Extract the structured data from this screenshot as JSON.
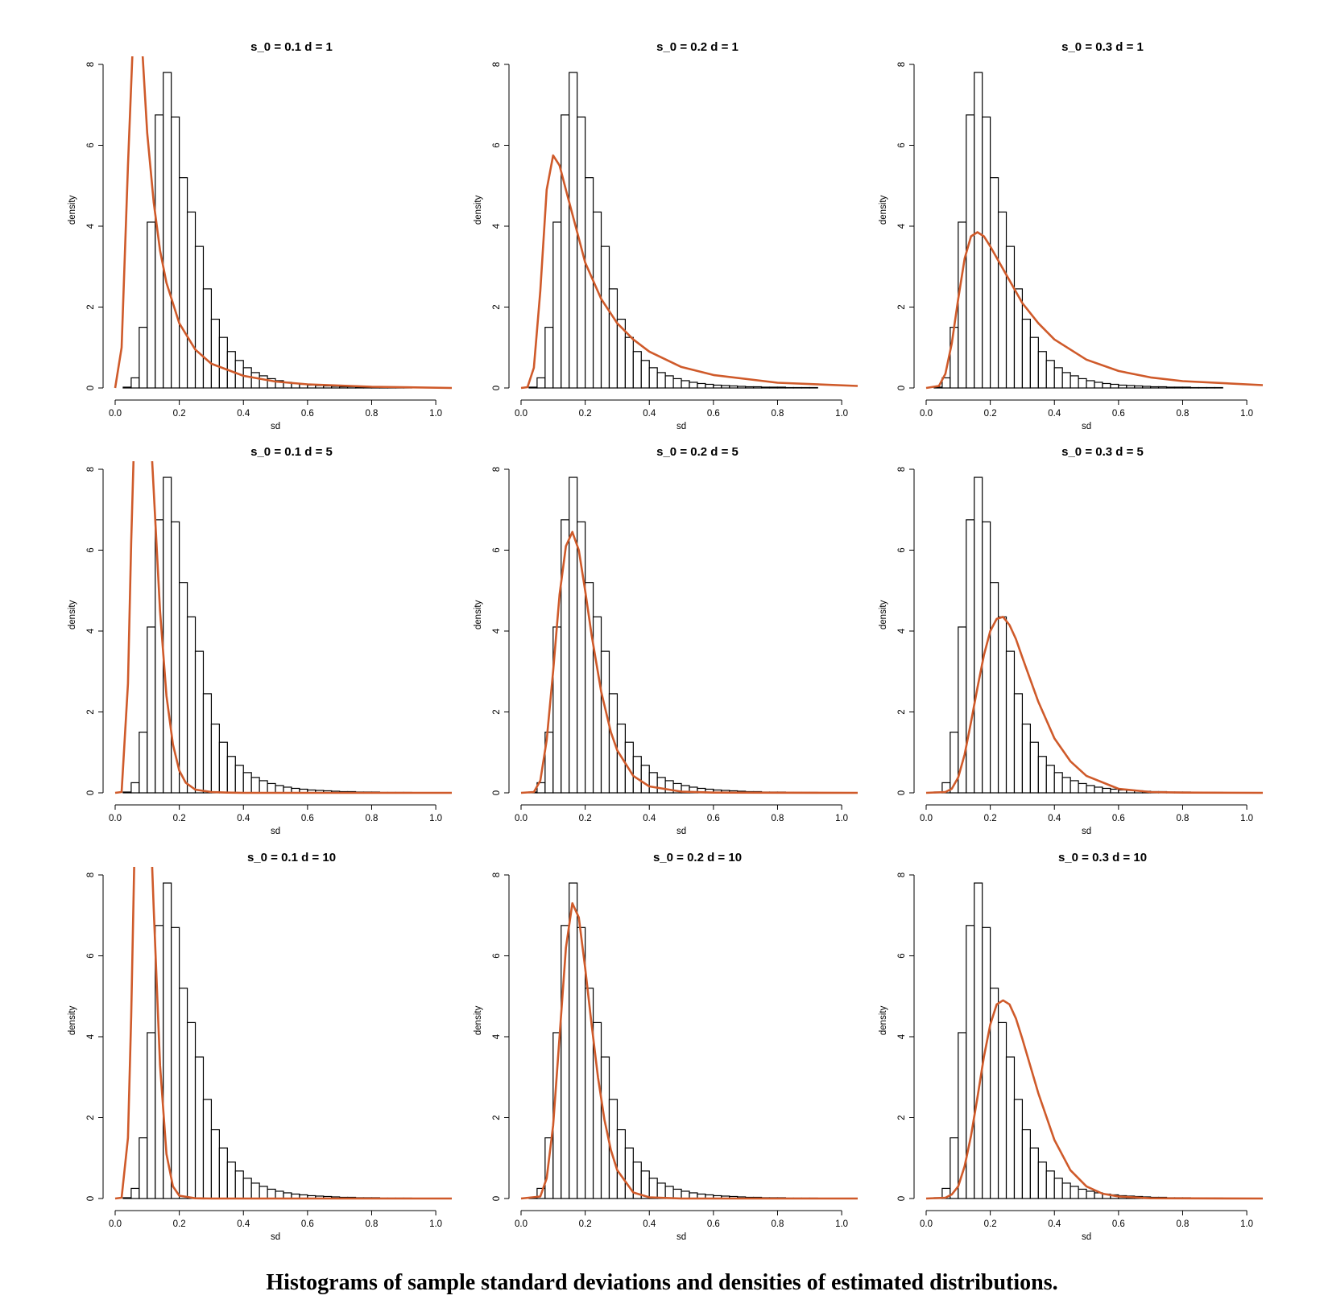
{
  "caption": "Histograms of sample standard deviations and densities of estimated distributions.",
  "colors": {
    "curve": "#cf5a2a",
    "bars": "#000000"
  },
  "chart_data": {
    "type": "bar",
    "layout": "3x3 grid of histograms with overlaid density curves",
    "xlabel": "sd",
    "ylabel": "density",
    "xlim": [
      0,
      1.05
    ],
    "ylim": [
      0,
      8
    ],
    "x_ticks": [
      0.0,
      0.2,
      0.4,
      0.6,
      0.8,
      1.0
    ],
    "x_tick_labels": [
      "0.0",
      "0.2",
      "0.4",
      "0.6",
      "0.8",
      "1.0"
    ],
    "y_ticks": [
      0,
      2,
      4,
      6,
      8
    ],
    "y_tick_labels": [
      "0",
      "2",
      "4",
      "6",
      "8"
    ],
    "histogram": {
      "bin_width": 0.025,
      "bin_starts": [
        0.0,
        0.025,
        0.05,
        0.075,
        0.1,
        0.125,
        0.15,
        0.175,
        0.2,
        0.225,
        0.25,
        0.275,
        0.3,
        0.325,
        0.35,
        0.375,
        0.4,
        0.425,
        0.45,
        0.475,
        0.5,
        0.525,
        0.55,
        0.575,
        0.6,
        0.625,
        0.65,
        0.675,
        0.7,
        0.725,
        0.75,
        0.775,
        0.8,
        0.825,
        0.85,
        0.875,
        0.9
      ],
      "density": [
        0,
        0.02,
        0.25,
        1.5,
        4.1,
        6.75,
        7.8,
        6.7,
        5.2,
        4.35,
        3.5,
        2.45,
        1.7,
        1.25,
        0.9,
        0.68,
        0.5,
        0.38,
        0.3,
        0.23,
        0.18,
        0.14,
        0.11,
        0.09,
        0.07,
        0.06,
        0.05,
        0.04,
        0.03,
        0.03,
        0.02,
        0.02,
        0.02,
        0.01,
        0.01,
        0.01,
        0.01
      ]
    },
    "panels": [
      {
        "title": "s_0 = 0.1 d = 1",
        "curve": {
          "x": [
            0.0,
            0.02,
            0.04,
            0.06,
            0.08,
            0.1,
            0.12,
            0.14,
            0.16,
            0.2,
            0.25,
            0.3,
            0.4,
            0.5,
            0.6,
            0.8,
            1.05
          ],
          "y": [
            0,
            1.0,
            5.5,
            9.5,
            9.0,
            6.3,
            4.6,
            3.4,
            2.6,
            1.6,
            0.95,
            0.6,
            0.3,
            0.16,
            0.09,
            0.03,
            0
          ]
        }
      },
      {
        "title": "s_0 = 0.2 d = 1",
        "curve": {
          "x": [
            0.0,
            0.02,
            0.04,
            0.06,
            0.08,
            0.1,
            0.12,
            0.14,
            0.16,
            0.18,
            0.2,
            0.25,
            0.3,
            0.35,
            0.4,
            0.5,
            0.6,
            0.8,
            1.05
          ],
          "y": [
            0,
            0.02,
            0.5,
            2.4,
            4.9,
            5.75,
            5.5,
            4.9,
            4.3,
            3.7,
            3.1,
            2.2,
            1.6,
            1.2,
            0.9,
            0.52,
            0.32,
            0.13,
            0.05
          ]
        }
      },
      {
        "title": "s_0 = 0.3 d = 1",
        "curve": {
          "x": [
            0.0,
            0.04,
            0.06,
            0.08,
            0.1,
            0.12,
            0.14,
            0.16,
            0.18,
            0.2,
            0.25,
            0.3,
            0.35,
            0.4,
            0.5,
            0.6,
            0.7,
            0.8,
            1.05
          ],
          "y": [
            0,
            0.05,
            0.35,
            1.1,
            2.2,
            3.2,
            3.75,
            3.85,
            3.75,
            3.5,
            2.8,
            2.1,
            1.6,
            1.2,
            0.7,
            0.42,
            0.26,
            0.17,
            0.07
          ]
        }
      },
      {
        "title": "s_0 = 0.1 d = 5",
        "curve": {
          "x": [
            0.0,
            0.02,
            0.04,
            0.05,
            0.06,
            0.08,
            0.1,
            0.12,
            0.14,
            0.16,
            0.18,
            0.2,
            0.22,
            0.25,
            0.3,
            0.35,
            0.4,
            0.6,
            1.05
          ],
          "y": [
            0,
            0.02,
            2.7,
            6.2,
            9.0,
            11.5,
            10.5,
            7.5,
            4.5,
            2.4,
            1.2,
            0.55,
            0.25,
            0.08,
            0.02,
            0.005,
            0,
            0,
            0
          ]
        }
      },
      {
        "title": "s_0 = 0.2 d = 5",
        "curve": {
          "x": [
            0.0,
            0.04,
            0.06,
            0.08,
            0.1,
            0.12,
            0.14,
            0.16,
            0.18,
            0.2,
            0.22,
            0.25,
            0.28,
            0.3,
            0.35,
            0.4,
            0.5,
            0.6,
            1.05
          ],
          "y": [
            0,
            0.02,
            0.3,
            1.3,
            3.0,
            4.9,
            6.1,
            6.45,
            6.0,
            5.0,
            3.9,
            2.5,
            1.5,
            1.05,
            0.42,
            0.16,
            0.03,
            0.005,
            0
          ]
        }
      },
      {
        "title": "s_0 = 0.3 d = 5",
        "curve": {
          "x": [
            0.0,
            0.06,
            0.08,
            0.1,
            0.12,
            0.14,
            0.16,
            0.18,
            0.2,
            0.22,
            0.24,
            0.26,
            0.28,
            0.3,
            0.35,
            0.4,
            0.45,
            0.5,
            0.6,
            0.7,
            0.8,
            1.05
          ],
          "y": [
            0,
            0.02,
            0.1,
            0.38,
            0.95,
            1.75,
            2.6,
            3.4,
            4.0,
            4.3,
            4.35,
            4.15,
            3.8,
            3.35,
            2.25,
            1.35,
            0.78,
            0.42,
            0.1,
            0.02,
            0.005,
            0
          ]
        }
      },
      {
        "title": "s_0 = 0.1 d = 10",
        "curve": {
          "x": [
            0.0,
            0.02,
            0.04,
            0.05,
            0.06,
            0.08,
            0.1,
            0.12,
            0.14,
            0.16,
            0.18,
            0.2,
            0.25,
            0.3,
            1.05
          ],
          "y": [
            0,
            0.02,
            1.5,
            4.5,
            8.5,
            13.0,
            11.5,
            7.2,
            3.3,
            1.1,
            0.3,
            0.07,
            0.005,
            0,
            0
          ]
        }
      },
      {
        "title": "s_0 = 0.2 d = 10",
        "curve": {
          "x": [
            0.0,
            0.06,
            0.08,
            0.1,
            0.12,
            0.14,
            0.16,
            0.18,
            0.2,
            0.22,
            0.24,
            0.26,
            0.28,
            0.3,
            0.35,
            0.4,
            0.5,
            1.05
          ],
          "y": [
            0,
            0.05,
            0.5,
            1.8,
            4.0,
            6.2,
            7.3,
            6.95,
            5.7,
            4.3,
            3.0,
            1.95,
            1.2,
            0.7,
            0.15,
            0.03,
            0,
            0
          ]
        }
      },
      {
        "title": "s_0 = 0.3 d = 10",
        "curve": {
          "x": [
            0.0,
            0.06,
            0.08,
            0.1,
            0.12,
            0.14,
            0.16,
            0.18,
            0.2,
            0.22,
            0.24,
            0.26,
            0.28,
            0.3,
            0.35,
            0.4,
            0.45,
            0.5,
            0.55,
            0.6,
            0.7,
            1.05
          ],
          "y": [
            0,
            0.02,
            0.1,
            0.3,
            0.8,
            1.55,
            2.5,
            3.5,
            4.3,
            4.8,
            4.9,
            4.8,
            4.45,
            3.95,
            2.6,
            1.45,
            0.7,
            0.3,
            0.12,
            0.05,
            0.005,
            0
          ]
        }
      }
    ]
  }
}
